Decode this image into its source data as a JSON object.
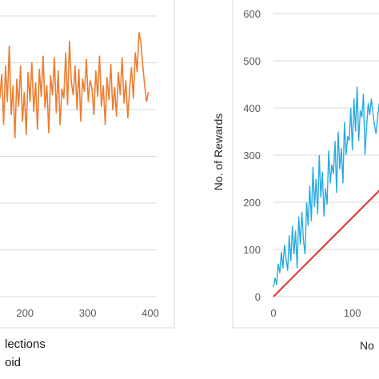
{
  "chart_data": [
    {
      "type": "line",
      "title": "",
      "xlabel": "",
      "ylabel": "",
      "xlim": [
        150,
        400
      ],
      "ylim": [
        0,
        170
      ],
      "grid": true,
      "x_ticks": [
        {
          "value": 200,
          "label": "200"
        },
        {
          "value": 300,
          "label": "300"
        },
        {
          "value": 400,
          "label": "400"
        }
      ],
      "series": [
        {
          "color": "#ED7D31",
          "x": [
            151,
            154,
            157,
            160,
            163,
            166,
            169,
            172,
            175,
            178,
            181,
            184,
            187,
            190,
            193,
            196,
            199,
            202,
            205,
            208,
            211,
            214,
            217,
            220,
            223,
            226,
            229,
            232,
            235,
            238,
            241,
            244,
            247,
            250,
            253,
            256,
            259,
            262,
            265,
            268,
            271,
            274,
            277,
            280,
            283,
            286,
            289,
            292,
            295,
            298,
            301,
            304,
            307,
            310,
            313,
            316,
            319,
            322,
            325,
            328,
            331,
            334,
            337,
            340,
            343,
            346,
            349,
            352,
            355,
            358,
            361,
            364,
            367,
            370,
            373,
            376,
            379,
            382,
            385,
            388,
            391,
            394,
            397
          ],
          "y": [
            125,
            112,
            148,
            120,
            135,
            104,
            140,
            118,
            152,
            110,
            128,
            96,
            132,
            115,
            140,
            106,
            124,
            98,
            136,
            118,
            142,
            112,
            130,
            101,
            138,
            121,
            146,
            114,
            128,
            99,
            134,
            122,
            145,
            111,
            137,
            104,
            126,
            120,
            148,
            116,
            155,
            130,
            122,
            140,
            113,
            138,
            106,
            132,
            124,
            144,
            118,
            131,
            126,
            110,
            137,
            121,
            146,
            115,
            128,
            104,
            133,
            119,
            141,
            113,
            127,
            109,
            136,
            122,
            145,
            117,
            131,
            108,
            126,
            139,
            120,
            148,
            136,
            160,
            154,
            140,
            128,
            118,
            124
          ]
        }
      ],
      "caption_lines": [
        "lections",
        "oid"
      ]
    },
    {
      "type": "line",
      "title": "",
      "xlabel": "No",
      "ylabel": "No. of Rewards",
      "xlim": [
        0,
        155
      ],
      "ylim": [
        0,
        600
      ],
      "grid": true,
      "y_ticks": [
        {
          "value": 0,
          "label": "0"
        },
        {
          "value": 100,
          "label": "100"
        },
        {
          "value": 200,
          "label": "200"
        },
        {
          "value": 300,
          "label": "300"
        },
        {
          "value": 400,
          "label": "400"
        },
        {
          "value": 500,
          "label": "500"
        },
        {
          "value": 600,
          "label": "600"
        }
      ],
      "x_ticks": [
        {
          "value": 0,
          "label": "0"
        },
        {
          "value": 100,
          "label": "100"
        }
      ],
      "series": [
        {
          "color": "#29ABE2",
          "x": [
            0,
            2,
            4,
            6,
            8,
            10,
            12,
            14,
            16,
            18,
            20,
            22,
            24,
            26,
            28,
            30,
            32,
            34,
            36,
            38,
            40,
            42,
            44,
            46,
            48,
            50,
            52,
            54,
            56,
            58,
            60,
            62,
            64,
            66,
            68,
            70,
            72,
            74,
            76,
            78,
            80,
            82,
            84,
            86,
            88,
            90,
            92,
            94,
            96,
            98,
            100,
            102,
            104,
            106,
            108,
            110,
            112,
            114,
            116,
            118,
            120,
            122,
            124,
            126,
            128,
            130,
            132,
            134,
            136,
            138,
            140,
            142,
            144,
            146,
            148,
            150,
            152,
            154
          ],
          "y": [
            20,
            40,
            25,
            70,
            50,
            95,
            60,
            110,
            80,
            55,
            130,
            75,
            150,
            90,
            140,
            60,
            170,
            110,
            180,
            120,
            90,
            200,
            150,
            235,
            160,
            275,
            190,
            250,
            175,
            300,
            210,
            265,
            170,
            230,
            195,
            310,
            240,
            280,
            260,
            330,
            220,
            350,
            270,
            315,
            240,
            370,
            300,
            340,
            330,
            400,
            310,
            420,
            350,
            445,
            330,
            395,
            380,
            430,
            300,
            360,
            410,
            385,
            420,
            390,
            365,
            345,
            380,
            410,
            395,
            325,
            360,
            390,
            350,
            405,
            370,
            390,
            340,
            360
          ]
        },
        {
          "color": "#E03030",
          "x": [
            0,
            155
          ],
          "y": [
            0,
            260
          ]
        }
      ]
    }
  ]
}
